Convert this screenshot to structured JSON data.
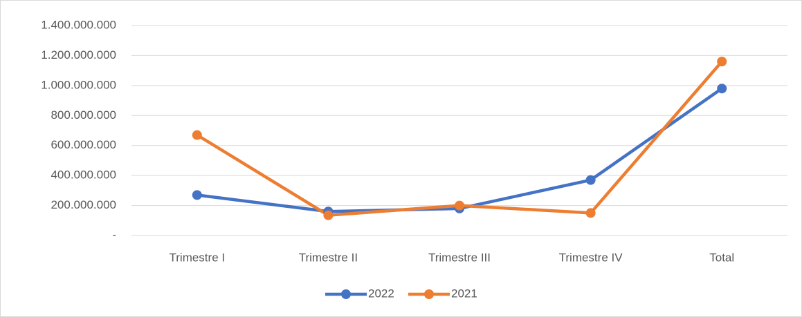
{
  "chart_data": {
    "type": "line",
    "categories": [
      "Trimestre I",
      "Trimestre II",
      "Trimestre III",
      "Trimestre IV",
      "Total"
    ],
    "series": [
      {
        "name": "2022",
        "color": "#4472c4",
        "values": [
          270000000,
          160000000,
          180000000,
          370000000,
          980000000
        ]
      },
      {
        "name": "2021",
        "color": "#ed7d31",
        "values": [
          670000000,
          135000000,
          200000000,
          150000000,
          1160000000
        ]
      }
    ],
    "ylim": [
      0,
      1400000000
    ],
    "yticks": [
      {
        "value": 0,
        "label": "-"
      },
      {
        "value": 200000000,
        "label": "200.000.000"
      },
      {
        "value": 400000000,
        "label": "400.000.000"
      },
      {
        "value": 600000000,
        "label": "600.000.000"
      },
      {
        "value": 800000000,
        "label": "800.000.000"
      },
      {
        "value": 1000000000,
        "label": "1.000.000.000"
      },
      {
        "value": 1200000000,
        "label": "1.200.000.000"
      },
      {
        "value": 1400000000,
        "label": "1.400.000.000"
      }
    ],
    "grid": true,
    "legend": "bottom"
  }
}
